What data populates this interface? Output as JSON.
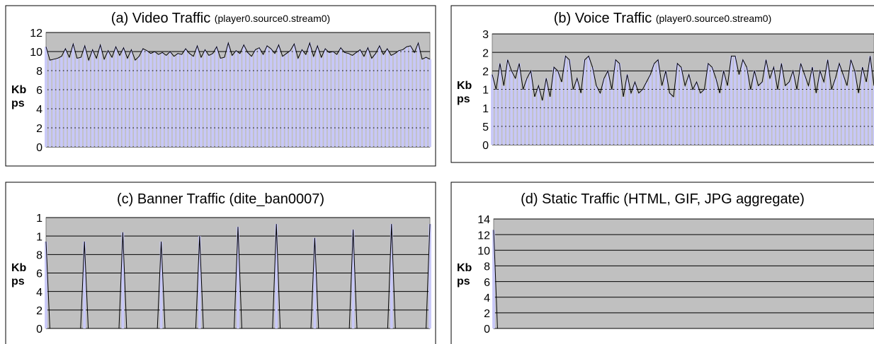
{
  "chart_data": [
    {
      "type": "line",
      "title": "(a) Video Traffic",
      "subtitle": "(player0.source0.stream0)",
      "ylabel": "Kbps",
      "ylim": [
        0,
        12
      ],
      "yticks": [
        0,
        2,
        4,
        6,
        8,
        10,
        12
      ],
      "color": "#000000",
      "fill": "#c8c8f8",
      "background": "#c0c0c0",
      "grid": true,
      "series": [
        {
          "values": [
            10.5,
            9.1,
            9.2,
            9.3,
            9.5,
            10.3,
            9.4,
            10.8,
            9.3,
            9.4,
            10.6,
            9.1,
            10.2,
            9.3,
            10.7,
            9.2,
            10.1,
            9.4,
            10.5,
            9.6,
            10.4,
            9.3,
            10.2,
            9.1,
            9.5,
            10.3,
            10.1,
            9.8,
            10.0,
            9.7,
            9.9,
            9.6,
            10.0,
            9.5,
            9.8,
            9.7,
            10.3,
            9.8,
            9.5,
            10.6,
            9.4,
            10.2,
            9.6,
            9.8,
            10.5,
            9.3,
            9.4,
            10.9,
            9.6,
            10.1,
            9.8,
            10.7,
            9.9,
            9.5,
            10.2,
            10.4,
            9.7,
            10.6,
            10.3,
            9.8,
            10.7,
            9.5,
            9.8,
            10.1,
            10.8,
            9.3,
            10.2,
            9.7,
            10.9,
            9.5,
            10.6,
            9.4,
            10.3,
            9.9,
            10.0,
            9.7,
            10.4,
            9.9,
            9.8,
            9.6,
            9.9,
            10.2,
            9.5,
            10.4,
            9.3,
            9.8,
            10.6,
            9.7,
            10.3,
            9.6,
            9.8,
            10.1,
            10.2,
            10.5,
            10.6,
            9.9,
            10.9,
            9.2,
            9.4,
            9.2
          ]
        }
      ]
    },
    {
      "type": "line",
      "title": "(b) Voice Traffic",
      "subtitle": "(player0.source0.stream0)",
      "ylabel": "Kbps",
      "ylim": [
        0,
        3
      ],
      "yticks": [
        0,
        {
          "value": 0.5,
          "label": "5"
        },
        {
          "value": 1,
          "label": "1"
        },
        {
          "value": 1.5,
          "label": "1"
        },
        {
          "value": 2,
          "label": "2"
        },
        {
          "value": 2.5,
          "label": "2"
        },
        3
      ],
      "color": "#000000",
      "fill": "#c8c8f8",
      "background": "#c0c0c0",
      "grid": true,
      "series": [
        {
          "values": [
            1.9,
            1.5,
            2.2,
            1.6,
            2.3,
            2.0,
            1.8,
            2.2,
            1.5,
            1.8,
            2.0,
            1.3,
            1.6,
            1.2,
            1.8,
            1.3,
            2.1,
            2.0,
            1.7,
            2.4,
            2.3,
            1.5,
            1.8,
            1.4,
            2.3,
            2.4,
            2.1,
            1.6,
            1.4,
            1.8,
            2.0,
            1.5,
            2.3,
            2.2,
            1.3,
            1.9,
            1.4,
            1.7,
            1.4,
            1.5,
            1.7,
            1.9,
            2.2,
            2.3,
            1.6,
            2.0,
            1.4,
            1.3,
            2.2,
            2.1,
            1.6,
            1.9,
            1.5,
            1.7,
            1.4,
            1.5,
            2.2,
            2.1,
            1.8,
            1.4,
            2.0,
            1.6,
            2.4,
            2.4,
            1.9,
            2.3,
            2.1,
            1.5,
            2.0,
            1.6,
            1.7,
            2.3,
            1.8,
            2.1,
            1.5,
            2.2,
            1.6,
            1.7,
            2.0,
            1.5,
            2.2,
            1.9,
            1.6,
            2.1,
            1.4,
            2.0,
            1.7,
            2.3,
            1.5,
            1.8,
            2.2,
            1.9,
            1.6,
            2.3,
            2.0,
            1.4,
            2.1,
            1.7,
            2.4,
            1.6
          ]
        }
      ]
    },
    {
      "type": "line",
      "title": "(c) Banner Traffic (dite_ban0007)",
      "ylabel": "Kbps",
      "ylim": [
        0,
        12
      ],
      "yticks": [
        0,
        2,
        4,
        6,
        8,
        {
          "value": 10,
          "label": "1"
        },
        {
          "value": 12,
          "label": "1"
        }
      ],
      "color": "#000000",
      "fill": "#c8c8f8",
      "background": "#c0c0c0",
      "grid": true,
      "series": [
        {
          "values": [
            9.4,
            0,
            0,
            0,
            0,
            0,
            0,
            0,
            0,
            0,
            9.4,
            0,
            0,
            0,
            0,
            0,
            0,
            0,
            0,
            0,
            10.4,
            0,
            0,
            0,
            0,
            0,
            0,
            0,
            0,
            0,
            9.4,
            0,
            0,
            0,
            0,
            0,
            0,
            0,
            0,
            0,
            10.0,
            0,
            0,
            0,
            0,
            0,
            0,
            0,
            0,
            0,
            11.0,
            0,
            0,
            0,
            0,
            0,
            0,
            0,
            0,
            0,
            11.3,
            0,
            0,
            0,
            0,
            0,
            0,
            0,
            0,
            0,
            9.8,
            0,
            0,
            0,
            0,
            0,
            0,
            0,
            0,
            0,
            10.7,
            0,
            0,
            0,
            0,
            0,
            0,
            0,
            0,
            0,
            11.3,
            0,
            0,
            0,
            0,
            0,
            0,
            0,
            0,
            0,
            11.3
          ]
        }
      ]
    },
    {
      "type": "line",
      "title": "(d) Static Traffic (HTML, GIF, JPG aggregate)",
      "ylabel": "Kbps",
      "ylim": [
        0,
        14
      ],
      "yticks": [
        0,
        2,
        4,
        6,
        8,
        10,
        12,
        14
      ],
      "color": "#000000",
      "fill": "#c8c8f8",
      "background": "#c0c0c0",
      "grid": true,
      "series": [
        {
          "values": [
            12.6,
            0,
            0,
            0,
            0,
            0,
            0,
            0,
            0,
            0,
            0,
            0,
            0,
            0,
            0,
            0,
            0,
            0,
            0,
            0,
            0,
            0,
            0,
            0,
            0,
            0,
            0,
            0,
            0,
            0,
            0,
            0,
            0,
            0,
            0,
            0,
            0,
            0,
            0,
            0,
            0,
            0,
            0,
            0,
            0,
            0,
            0,
            0,
            0,
            0,
            0,
            0,
            0,
            0,
            0,
            0,
            0,
            0,
            0,
            0,
            0,
            0,
            0,
            0,
            0,
            0,
            0,
            0,
            0,
            0,
            0,
            0,
            0,
            0,
            0,
            0,
            0,
            0,
            0,
            0,
            0,
            0,
            0,
            0,
            0,
            0,
            0,
            0,
            0,
            0,
            0,
            0,
            0,
            0,
            0,
            0,
            0,
            0,
            0,
            0
          ]
        }
      ]
    }
  ]
}
